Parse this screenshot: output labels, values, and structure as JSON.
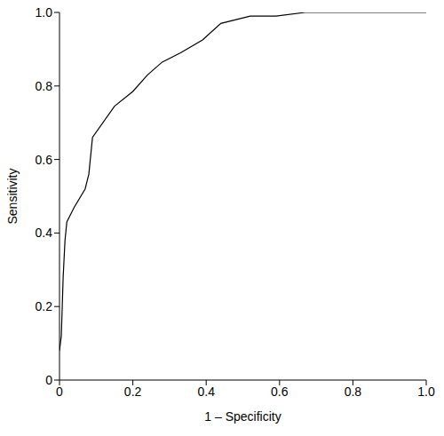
{
  "chart_data": {
    "type": "line",
    "x_label": "1 – Specificity",
    "y_label": "Sensitivity",
    "x": [
      0,
      0.005,
      0.01,
      0.015,
      0.02,
      0.04,
      0.07,
      0.08,
      0.09,
      0.15,
      0.2,
      0.24,
      0.28,
      0.33,
      0.39,
      0.44,
      0.52,
      0.59,
      0.67,
      1.0
    ],
    "values": [
      0.08,
      0.12,
      0.28,
      0.38,
      0.43,
      0.47,
      0.52,
      0.56,
      0.66,
      0.745,
      0.785,
      0.83,
      0.865,
      0.89,
      0.925,
      0.97,
      0.99,
      0.99,
      1.0,
      1.0
    ],
    "color": "#000000",
    "xlim": [
      0,
      1
    ],
    "ylim": [
      0,
      1
    ],
    "xticks": [
      0,
      0.2,
      0.4,
      0.6,
      0.8,
      {
        "value": 1,
        "label": "1.0"
      }
    ],
    "yticks": [
      0,
      0.2,
      0.4,
      0.6,
      0.8,
      {
        "value": 1,
        "label": "1.0"
      }
    ],
    "grid": false
  }
}
